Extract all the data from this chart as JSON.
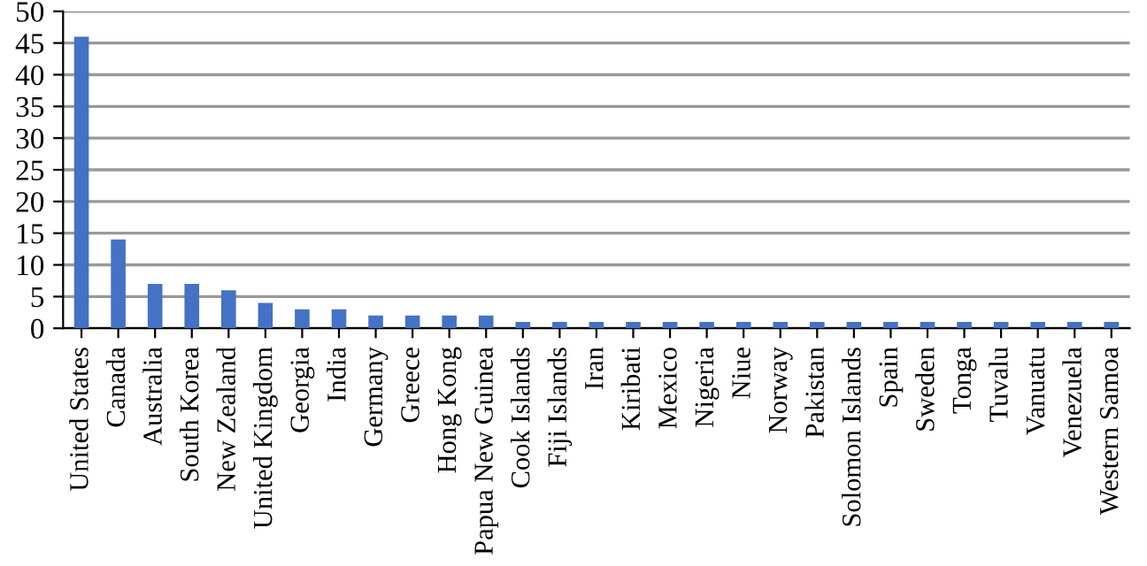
{
  "chart_data": {
    "type": "bar",
    "categories": [
      "United States",
      "Canada",
      "Australia",
      "South Korea",
      "New Zealand",
      "United Kingdom",
      "Georgia",
      "India",
      "Germany",
      "Greece",
      "Hong Kong",
      "Papua New Guinea",
      "Cook Islands",
      "Fiji Islands",
      "Iran",
      "Kiribati",
      "Mexico",
      "Nigeria",
      "Niue",
      "Norway",
      "Pakistan",
      "Solomon Islands",
      "Spain",
      "Sweden",
      "Tonga",
      "Tuvalu",
      "Vanuatu",
      "Venezuela",
      "Western Samoa"
    ],
    "values": [
      46,
      14,
      7,
      7,
      6,
      4,
      3,
      3,
      2,
      2,
      2,
      2,
      1,
      1,
      1,
      1,
      1,
      1,
      1,
      1,
      1,
      1,
      1,
      1,
      1,
      1,
      1,
      1,
      1
    ],
    "color": "#4472c4",
    "ylim": [
      0,
      50
    ],
    "yticks": [
      0,
      5,
      10,
      15,
      20,
      25,
      30,
      35,
      40,
      45,
      50
    ],
    "grid": "y"
  }
}
